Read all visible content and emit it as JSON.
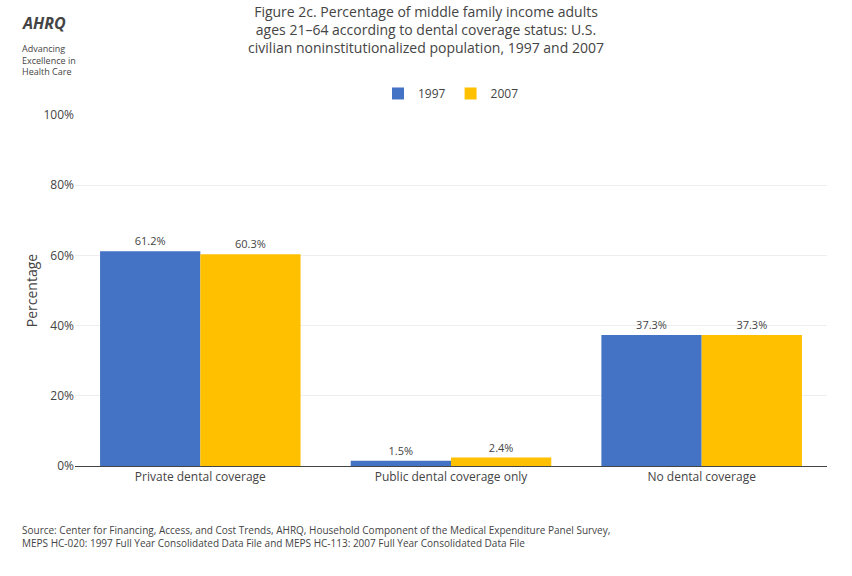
{
  "chart_data": {
    "type": "bar",
    "title": "Figure 2c. Percentage of middle family income adults\nages 21–64 according to dental coverage status: U.S.\ncivilian noninstitutionalized population, 1997 and 2007",
    "y_label": "Percentage",
    "categories": [
      "Private dental coverage",
      "Public dental coverage only",
      "No dental coverage"
    ],
    "series": [
      {
        "name": "1997",
        "color": "#4472C4",
        "values": [
          61.2,
          1.5,
          37.3
        ],
        "value_labels": [
          "61.2%",
          "1.5%",
          "37.3%"
        ]
      },
      {
        "name": "2007",
        "color": "#FFC000",
        "values": [
          60.3,
          2.4,
          37.3
        ],
        "value_labels": [
          "60.3%",
          "2.4%",
          "37.3%"
        ]
      }
    ],
    "ylim": [
      0,
      100
    ],
    "yticks": [
      {
        "value": 0,
        "label": "0%"
      },
      {
        "value": 20,
        "label": "20%"
      },
      {
        "value": 40,
        "label": "40%"
      },
      {
        "value": 60,
        "label": "60%"
      },
      {
        "value": 80,
        "label": "80%"
      },
      {
        "value": 100,
        "label": "100%"
      }
    ],
    "grid": true,
    "legend": "top",
    "data_labels": true,
    "annotations": [
      "Source: Center for Financing, Access, and Cost Trends, AHRQ, Household Component of the Medical Expenditure Panel Survey, MEPS HC-020: 1997 Full Year Consolidated Data File and MEPS HC-113: 2007 Full Year Consolidated Data File",
      "AHRQ",
      "Advancing\nExcellence in\nHealth Care"
    ]
  }
}
